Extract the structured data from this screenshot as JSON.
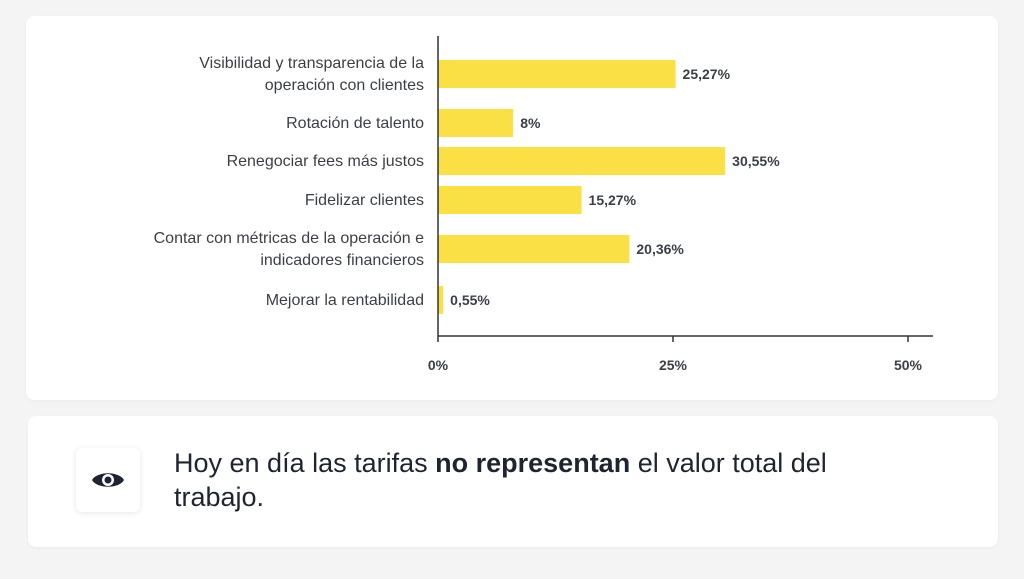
{
  "chart_data": {
    "type": "bar",
    "orientation": "horizontal",
    "categories": [
      [
        "Visibilidad y transparencia de la",
        "operación con clientes"
      ],
      [
        "Rotación de talento"
      ],
      [
        "Renegociar fees más justos"
      ],
      [
        "Fidelizar clientes"
      ],
      [
        "Contar con métricas de la operación e",
        "indicadores financieros"
      ],
      [
        "Mejorar la rentabilidad"
      ]
    ],
    "values": [
      25.27,
      8,
      30.55,
      15.27,
      20.36,
      0.55
    ],
    "value_labels": [
      "25,27%",
      "8%",
      "30,55%",
      "15,27%",
      "20,36%",
      "0,55%"
    ],
    "xticks": [
      0,
      25,
      50
    ],
    "xtick_labels": [
      "0%",
      "25%",
      "50%"
    ],
    "xlim": [
      0,
      53
    ],
    "bar_color": "#fbe045",
    "grid": false
  },
  "insight": {
    "icon": "eye-icon",
    "text_before": "Hoy en día las tarifas ",
    "text_bold": "no representan",
    "text_after": " el valor total del trabajo."
  }
}
